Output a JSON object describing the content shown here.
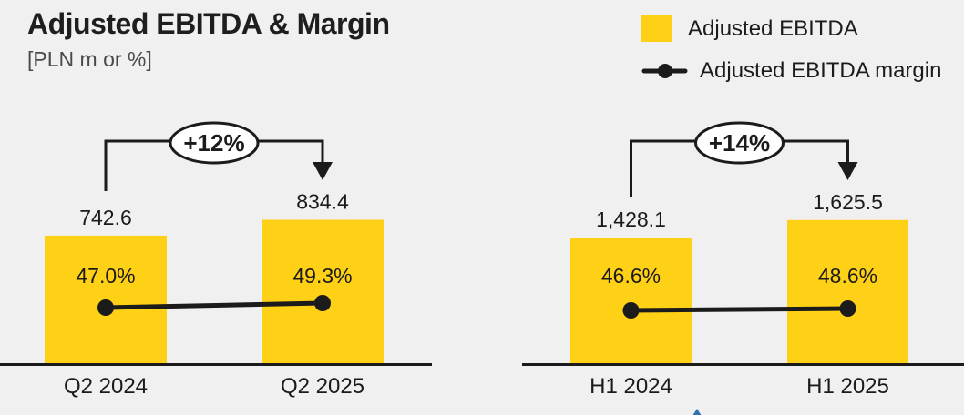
{
  "header": {
    "title": "Adjusted EBITDA & Margin",
    "subtitle": "[PLN m or %]"
  },
  "legend": {
    "items": [
      {
        "label": "Adjusted EBITDA",
        "swatch": "bar-square",
        "color": "#ffd116"
      },
      {
        "label": "Adjusted EBITDA margin",
        "swatch": "line-dot",
        "color": "#1b1b1b"
      }
    ]
  },
  "colors": {
    "bar": "#ffd116",
    "ink": "#1b1b1b",
    "background": "#f0f0f0",
    "subtitle_text": "#4a4a4a",
    "badge_fill": "#ffffff",
    "logo_fragment_blue": "#2e72ae"
  },
  "chart_data": [
    {
      "type": "bar",
      "categories": [
        "Q2 2024",
        "Q2 2025"
      ],
      "series": [
        {
          "name": "Adjusted EBITDA",
          "type": "bar",
          "unit": "PLN m",
          "values": [
            742.6,
            834.4
          ],
          "labels": [
            "742.6",
            "834.4"
          ]
        },
        {
          "name": "Adjusted EBITDA margin",
          "type": "line",
          "unit": "%",
          "values": [
            47.0,
            49.3
          ],
          "labels": [
            "47.0%",
            "49.3%"
          ]
        }
      ],
      "change_badge": "+12%",
      "legend_position": "top-right",
      "grid": false,
      "value_labels_position": "above-bar",
      "margin_labels_position": "inside-bar"
    },
    {
      "type": "bar",
      "categories": [
        "H1 2024",
        "H1 2025"
      ],
      "series": [
        {
          "name": "Adjusted EBITDA",
          "type": "bar",
          "unit": "PLN m",
          "values": [
            1428.1,
            1625.5
          ],
          "labels": [
            "1,428.1",
            "1,625.5"
          ]
        },
        {
          "name": "Adjusted EBITDA margin",
          "type": "line",
          "unit": "%",
          "values": [
            46.6,
            48.6
          ],
          "labels": [
            "46.6%",
            "48.6%"
          ]
        }
      ],
      "change_badge": "+14%",
      "legend_position": "top-right",
      "grid": false,
      "value_labels_position": "above-bar",
      "margin_labels_position": "inside-bar"
    }
  ]
}
